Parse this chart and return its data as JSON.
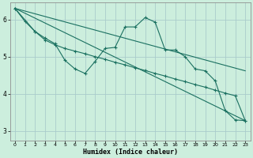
{
  "xlabel": "Humidex (Indice chaleur)",
  "background_color": "#cceedd",
  "grid_color": "#aacccc",
  "line_color": "#1a7060",
  "xlim": [
    -0.5,
    23.5
  ],
  "ylim": [
    2.75,
    6.45
  ],
  "xticks": [
    0,
    1,
    2,
    3,
    4,
    5,
    6,
    7,
    8,
    9,
    10,
    11,
    12,
    13,
    14,
    15,
    16,
    17,
    18,
    19,
    20,
    21,
    22,
    23
  ],
  "yticks": [
    3,
    4,
    5,
    6
  ],
  "line1_x": [
    0,
    1,
    2,
    3,
    4,
    5,
    6,
    7,
    8,
    9,
    10,
    11,
    12,
    13,
    14,
    15,
    16,
    17,
    18,
    19,
    20,
    21,
    22,
    23
  ],
  "line1_y": [
    6.3,
    5.95,
    5.68,
    5.5,
    5.35,
    4.9,
    4.67,
    4.55,
    4.87,
    5.22,
    5.25,
    5.8,
    5.8,
    6.05,
    5.93,
    5.18,
    5.18,
    5.0,
    4.67,
    4.62,
    4.35,
    3.55,
    3.3,
    3.28
  ],
  "line2_x": [
    0,
    2,
    3,
    4,
    5,
    6,
    7,
    8,
    9,
    10,
    11,
    12,
    13,
    14,
    15,
    16,
    17,
    18,
    19,
    20,
    21,
    22,
    23
  ],
  "line2_y": [
    6.3,
    5.68,
    5.45,
    5.32,
    5.22,
    5.15,
    5.08,
    5.0,
    4.93,
    4.85,
    4.78,
    4.7,
    4.63,
    4.55,
    4.48,
    4.4,
    4.33,
    4.25,
    4.18,
    4.1,
    4.02,
    3.95,
    3.28
  ],
  "line3_x": [
    0,
    23
  ],
  "line3_y": [
    6.3,
    4.62
  ],
  "line4_x": [
    0,
    23
  ],
  "line4_y": [
    6.3,
    3.28
  ]
}
